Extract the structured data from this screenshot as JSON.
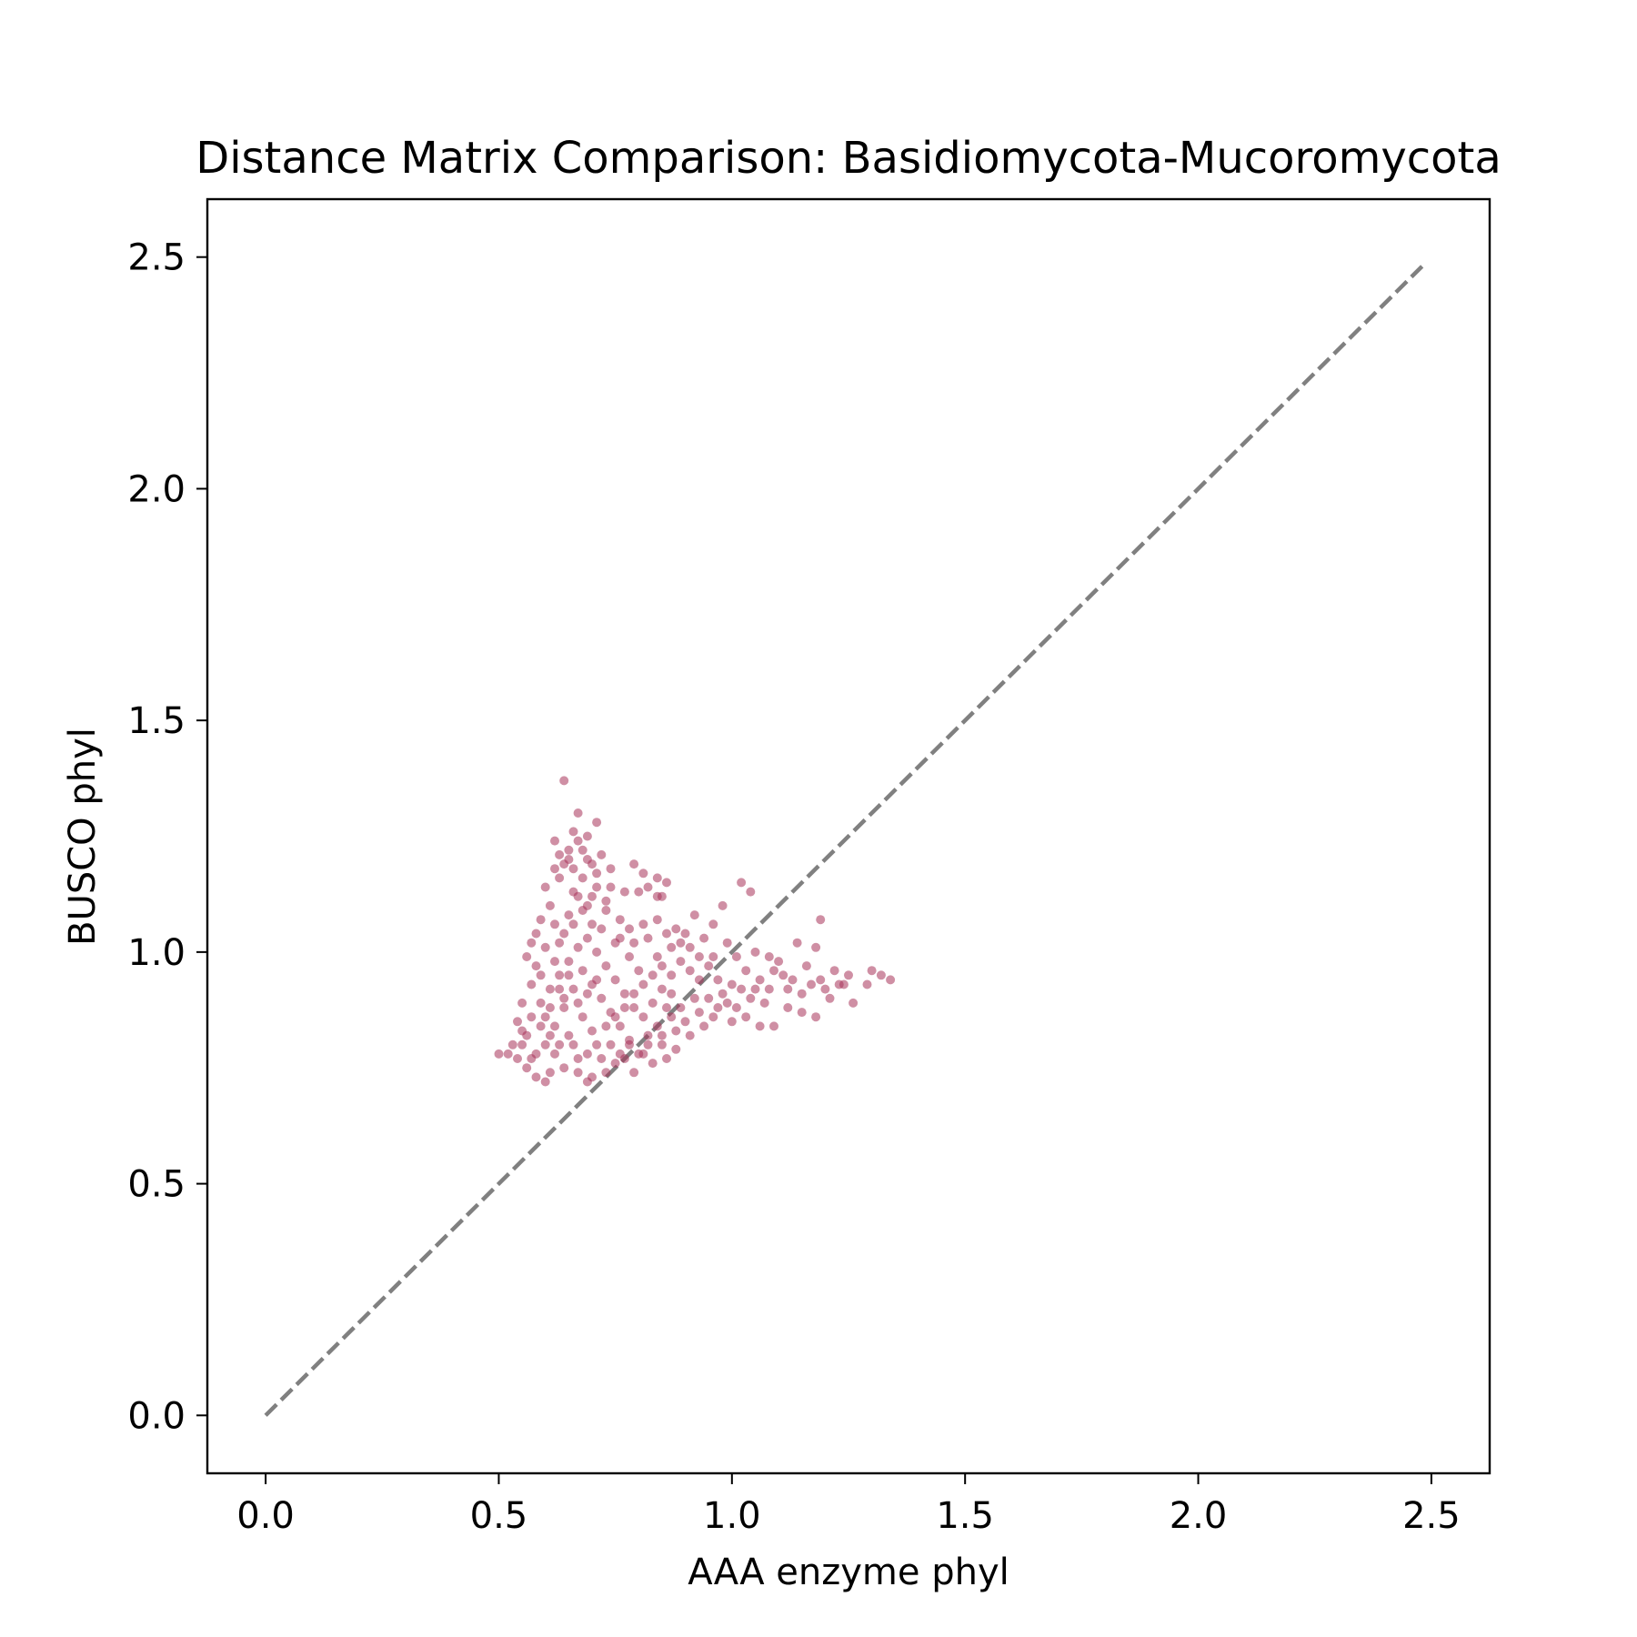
{
  "chart_data": {
    "type": "scatter",
    "title": "Distance Matrix Comparison: Basidiomycota-Mucoromycota",
    "xlabel": "AAA enzyme phyl",
    "ylabel": "BUSCO phyl",
    "xlim": [
      -0.125,
      2.625
    ],
    "ylim": [
      -0.125,
      2.625
    ],
    "xticks": [
      0.0,
      0.5,
      1.0,
      1.5,
      2.0,
      2.5
    ],
    "yticks": [
      0.0,
      0.5,
      1.0,
      1.5,
      2.0,
      2.5
    ],
    "xtick_labels": [
      "0.0",
      "0.5",
      "1.0",
      "1.5",
      "2.0",
      "2.5"
    ],
    "ytick_labels": [
      "0.0",
      "0.5",
      "1.0",
      "1.5",
      "2.0",
      "2.5"
    ],
    "grid": false,
    "point_color": "#a8335a",
    "point_opacity": 0.55,
    "reference_line": {
      "style": "dashed",
      "color": "#808080",
      "x": [
        0.0,
        2.48
      ],
      "y": [
        0.0,
        2.48
      ]
    },
    "series": [
      {
        "points": [
          [
            0.64,
            1.37
          ],
          [
            0.67,
            1.3
          ],
          [
            0.71,
            1.28
          ],
          [
            0.66,
            1.26
          ],
          [
            0.69,
            1.25
          ],
          [
            0.62,
            1.24
          ],
          [
            0.68,
            1.22
          ],
          [
            0.72,
            1.21
          ],
          [
            0.63,
            1.21
          ],
          [
            0.65,
            1.2
          ],
          [
            0.7,
            1.19
          ],
          [
            0.74,
            1.18
          ],
          [
            0.79,
            1.19
          ],
          [
            0.81,
            1.17
          ],
          [
            0.84,
            1.16
          ],
          [
            0.86,
            1.15
          ],
          [
            0.82,
            1.14
          ],
          [
            0.8,
            1.13
          ],
          [
            0.84,
            1.12
          ],
          [
            0.85,
            1.12
          ],
          [
            0.77,
            1.13
          ],
          [
            0.6,
            1.14
          ],
          [
            0.61,
            1.1
          ],
          [
            0.62,
            1.06
          ],
          [
            0.59,
            1.07
          ],
          [
            0.58,
            1.04
          ],
          [
            0.57,
            1.02
          ],
          [
            0.56,
            0.99
          ],
          [
            0.63,
            1.16
          ],
          [
            0.66,
            1.13
          ],
          [
            0.69,
            1.1
          ],
          [
            0.73,
            1.09
          ],
          [
            0.76,
            1.07
          ],
          [
            0.78,
            1.05
          ],
          [
            0.81,
            1.06
          ],
          [
            0.84,
            1.07
          ],
          [
            0.88,
            1.05
          ],
          [
            0.9,
            1.04
          ],
          [
            0.92,
            1.08
          ],
          [
            0.98,
            1.1
          ],
          [
            1.02,
            1.15
          ],
          [
            1.04,
            1.13
          ],
          [
            0.96,
            1.06
          ],
          [
            0.94,
            1.03
          ],
          [
            0.99,
            1.02
          ],
          [
            1.01,
            0.99
          ],
          [
            1.05,
            1.0
          ],
          [
            1.08,
            0.99
          ],
          [
            1.1,
            0.98
          ],
          [
            1.14,
            1.02
          ],
          [
            1.18,
            1.01
          ],
          [
            1.19,
            1.07
          ],
          [
            1.16,
            0.97
          ],
          [
            1.22,
            0.96
          ],
          [
            1.25,
            0.95
          ],
          [
            1.24,
            0.93
          ],
          [
            1.2,
            0.92
          ],
          [
            1.17,
            0.93
          ],
          [
            1.13,
            0.94
          ],
          [
            1.11,
            0.95
          ],
          [
            1.09,
            0.96
          ],
          [
            1.06,
            0.94
          ],
          [
            1.03,
            0.96
          ],
          [
            1.0,
            0.93
          ],
          [
            0.98,
            0.91
          ],
          [
            0.95,
            0.9
          ],
          [
            1.04,
            0.9
          ],
          [
            1.07,
            0.89
          ],
          [
            1.12,
            0.88
          ],
          [
            1.15,
            0.87
          ],
          [
            1.18,
            0.86
          ],
          [
            1.21,
            0.9
          ],
          [
            1.26,
            0.89
          ],
          [
            1.3,
            0.96
          ],
          [
            1.32,
            0.95
          ],
          [
            1.34,
            0.94
          ],
          [
            1.29,
            0.93
          ],
          [
            1.09,
            0.84
          ],
          [
            1.06,
            0.84
          ],
          [
            1.03,
            0.86
          ],
          [
            1.0,
            0.85
          ],
          [
            0.96,
            0.86
          ],
          [
            0.93,
            0.87
          ],
          [
            0.9,
            0.85
          ],
          [
            0.88,
            0.83
          ],
          [
            0.85,
            0.82
          ],
          [
            0.82,
            0.8
          ],
          [
            0.8,
            0.78
          ],
          [
            0.77,
            0.77
          ],
          [
            0.75,
            0.76
          ],
          [
            0.73,
            0.74
          ],
          [
            0.7,
            0.73
          ],
          [
            0.67,
            0.74
          ],
          [
            0.64,
            0.75
          ],
          [
            0.61,
            0.74
          ],
          [
            0.58,
            0.73
          ],
          [
            0.56,
            0.75
          ],
          [
            0.54,
            0.77
          ],
          [
            0.52,
            0.78
          ],
          [
            0.5,
            0.78
          ],
          [
            0.53,
            0.8
          ],
          [
            0.55,
            0.83
          ],
          [
            0.57,
            0.86
          ],
          [
            0.59,
            0.89
          ],
          [
            0.61,
            0.92
          ],
          [
            0.63,
            0.95
          ],
          [
            0.65,
            0.98
          ],
          [
            0.67,
            1.01
          ],
          [
            0.69,
            1.03
          ],
          [
            0.71,
            1.0
          ],
          [
            0.73,
            0.97
          ],
          [
            0.75,
            0.94
          ],
          [
            0.77,
            0.91
          ],
          [
            0.79,
            0.88
          ],
          [
            0.81,
            0.86
          ],
          [
            0.83,
            0.89
          ],
          [
            0.85,
            0.92
          ],
          [
            0.87,
            0.95
          ],
          [
            0.89,
            0.98
          ],
          [
            0.91,
            0.96
          ],
          [
            0.93,
            0.94
          ],
          [
            0.86,
            0.88
          ],
          [
            0.84,
            0.84
          ],
          [
            0.82,
            0.82
          ],
          [
            0.78,
            0.81
          ],
          [
            0.76,
            0.84
          ],
          [
            0.74,
            0.87
          ],
          [
            0.72,
            0.9
          ],
          [
            0.7,
            0.93
          ],
          [
            0.68,
            0.96
          ],
          [
            0.66,
            0.92
          ],
          [
            0.64,
            0.88
          ],
          [
            0.62,
            0.84
          ],
          [
            0.6,
            0.8
          ],
          [
            0.58,
            0.78
          ],
          [
            0.62,
            0.78
          ],
          [
            0.66,
            0.8
          ],
          [
            0.7,
            0.83
          ],
          [
            0.74,
            0.8
          ],
          [
            0.68,
            0.86
          ],
          [
            0.64,
            0.9
          ],
          [
            0.6,
            0.86
          ],
          [
            0.56,
            0.82
          ],
          [
            0.59,
            0.95
          ],
          [
            0.63,
            1.02
          ],
          [
            0.65,
            1.08
          ],
          [
            0.67,
            1.12
          ],
          [
            0.71,
            1.14
          ],
          [
            0.73,
            1.11
          ],
          [
            0.75,
            1.02
          ],
          [
            0.78,
            0.99
          ],
          [
            0.8,
            0.96
          ],
          [
            0.84,
            0.99
          ],
          [
            0.87,
            1.01
          ],
          [
            0.91,
            1.01
          ],
          [
            0.95,
            0.97
          ],
          [
            0.97,
            0.94
          ],
          [
            0.99,
            0.89
          ],
          [
            1.02,
            0.92
          ],
          [
            1.05,
            0.92
          ],
          [
            0.94,
            0.84
          ],
          [
            0.91,
            0.82
          ],
          [
            0.88,
            0.79
          ],
          [
            0.86,
            0.77
          ],
          [
            0.83,
            0.76
          ],
          [
            0.79,
            0.74
          ],
          [
            0.69,
            0.72
          ],
          [
            0.6,
            0.72
          ],
          [
            0.57,
            0.77
          ],
          [
            0.55,
            0.8
          ],
          [
            0.54,
            0.85
          ],
          [
            0.55,
            0.89
          ],
          [
            0.57,
            0.93
          ],
          [
            0.58,
            0.97
          ],
          [
            0.66,
            1.18
          ],
          [
            0.68,
            1.16
          ],
          [
            0.64,
            1.19
          ],
          [
            0.7,
            1.06
          ],
          [
            0.72,
            1.05
          ],
          [
            0.76,
            1.03
          ],
          [
            0.79,
            1.02
          ],
          [
            0.82,
            1.03
          ],
          [
            0.86,
            1.04
          ],
          [
            0.89,
            1.02
          ],
          [
            0.93,
            0.99
          ],
          [
            0.96,
            0.99
          ],
          [
            1.12,
            0.92
          ],
          [
            1.15,
            0.91
          ],
          [
            1.19,
            0.94
          ],
          [
            1.23,
            0.93
          ],
          [
            1.08,
            0.92
          ],
          [
            1.01,
            0.88
          ],
          [
            0.97,
            0.88
          ],
          [
            0.92,
            0.9
          ],
          [
            0.89,
            0.88
          ],
          [
            0.87,
            0.86
          ],
          [
            0.85,
            0.8
          ],
          [
            0.81,
            0.78
          ],
          [
            0.78,
            0.8
          ],
          [
            0.76,
            0.78
          ],
          [
            0.72,
            0.77
          ],
          [
            0.71,
            0.8
          ],
          [
            0.69,
            0.78
          ],
          [
            0.67,
            0.77
          ],
          [
            0.65,
            0.82
          ],
          [
            0.63,
            0.8
          ],
          [
            0.61,
            0.82
          ],
          [
            0.59,
            0.84
          ],
          [
            0.61,
            0.88
          ],
          [
            0.63,
            0.92
          ],
          [
            0.65,
            0.95
          ],
          [
            0.67,
            0.89
          ],
          [
            0.69,
            0.91
          ],
          [
            0.71,
            0.94
          ],
          [
            0.73,
            0.84
          ],
          [
            0.75,
            0.86
          ],
          [
            0.77,
            0.88
          ],
          [
            0.79,
            0.91
          ],
          [
            0.81,
            0.93
          ],
          [
            0.83,
            0.95
          ],
          [
            0.85,
            0.97
          ],
          [
            0.87,
            0.91
          ],
          [
            0.62,
            0.98
          ],
          [
            0.6,
            1.01
          ],
          [
            0.64,
            1.04
          ],
          [
            0.66,
            1.06
          ],
          [
            0.68,
            1.09
          ],
          [
            0.7,
            1.12
          ],
          [
            0.62,
            1.18
          ],
          [
            0.65,
            1.22
          ],
          [
            0.67,
            1.24
          ],
          [
            0.69,
            1.2
          ],
          [
            0.71,
            1.17
          ],
          [
            0.74,
            1.14
          ]
        ]
      }
    ]
  }
}
